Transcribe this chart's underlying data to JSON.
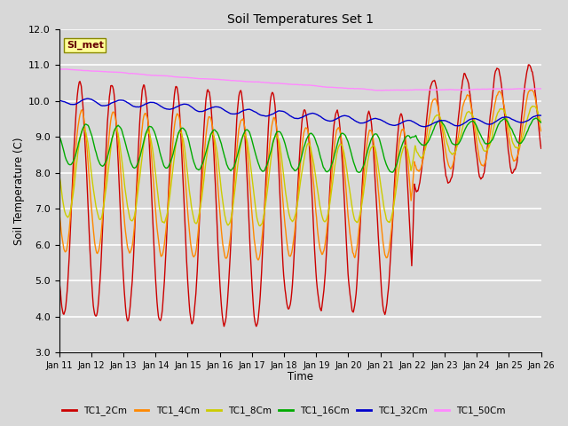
{
  "title": "Soil Temperatures Set 1",
  "xlabel": "Time",
  "ylabel": "Soil Temperature (C)",
  "ylim": [
    3.0,
    12.0
  ],
  "yticks": [
    3.0,
    4.0,
    5.0,
    6.0,
    7.0,
    8.0,
    9.0,
    10.0,
    11.0,
    12.0
  ],
  "date_labels": [
    "Jan 11",
    "Jan 12",
    "Jan 13",
    "Jan 14",
    "Jan 15",
    "Jan 16",
    "Jan 17",
    "Jan 18",
    "Jan 19",
    "Jan 20",
    "Jan 21",
    "Jan 22",
    "Jan 23",
    "Jan 24",
    "Jan 25",
    "Jan 26"
  ],
  "legend_labels": [
    "TC1_2Cm",
    "TC1_4Cm",
    "TC1_8Cm",
    "TC1_16Cm",
    "TC1_32Cm",
    "TC1_50Cm"
  ],
  "line_colors": [
    "#cc0000",
    "#ff8800",
    "#cccc00",
    "#00aa00",
    "#0000cc",
    "#ff88ff"
  ],
  "background_color": "#d8d8d8",
  "plot_bg_color": "#d8d8d8",
  "grid_color": "#ffffff",
  "linewidth": 1.0,
  "figsize": [
    6.4,
    4.8
  ],
  "dpi": 100
}
